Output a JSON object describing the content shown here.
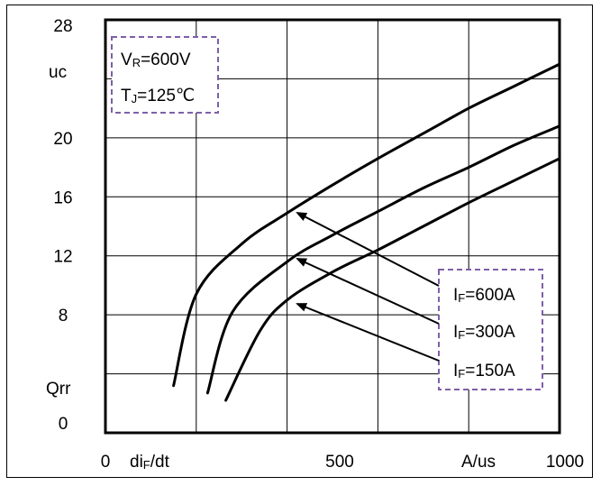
{
  "chart_data": {
    "type": "line",
    "title": "",
    "xlim": [
      0,
      1000
    ],
    "ylim": [
      0,
      28
    ],
    "x_tick_labels": [
      "0",
      "500",
      "1000"
    ],
    "y_tick_labels": [
      "0",
      "8",
      "12",
      "16",
      "20",
      "28"
    ],
    "x_axis_label": {
      "var": "di",
      "sub": "F",
      "tail": "/dt",
      "unit": "A/us"
    },
    "y_axis_label": {
      "name": "Qrr",
      "unit": "uc"
    },
    "grid": true,
    "conditions": [
      {
        "main": "V",
        "sub": "R",
        "tail": "=600V"
      },
      {
        "main": "T",
        "sub": "J",
        "tail": "=125℃"
      }
    ],
    "series": [
      {
        "name": "IF=600A",
        "label_main": "I",
        "label_sub": "F",
        "label_tail": "=600A",
        "x": [
          150,
          200,
          300,
          400,
          500,
          600,
          700,
          800,
          900,
          1000
        ],
        "y": [
          3.2,
          9.4,
          12.8,
          14.9,
          16.8,
          18.6,
          20.3,
          22.0,
          23.5,
          25.0
        ]
      },
      {
        "name": "IF=300A",
        "label_main": "I",
        "label_sub": "F",
        "label_tail": "=300A",
        "x": [
          225,
          280,
          400,
          500,
          600,
          700,
          800,
          900,
          1000
        ],
        "y": [
          2.7,
          8.2,
          11.6,
          13.4,
          15.0,
          16.6,
          18.0,
          19.5,
          20.8
        ]
      },
      {
        "name": "IF=150A",
        "label_main": "I",
        "label_sub": "F",
        "label_tail": "=150A",
        "x": [
          265,
          340,
          400,
          500,
          600,
          700,
          800,
          900,
          1000
        ],
        "y": [
          2.2,
          6.9,
          9.0,
          10.9,
          12.4,
          14.0,
          15.6,
          17.1,
          18.6
        ]
      }
    ]
  }
}
